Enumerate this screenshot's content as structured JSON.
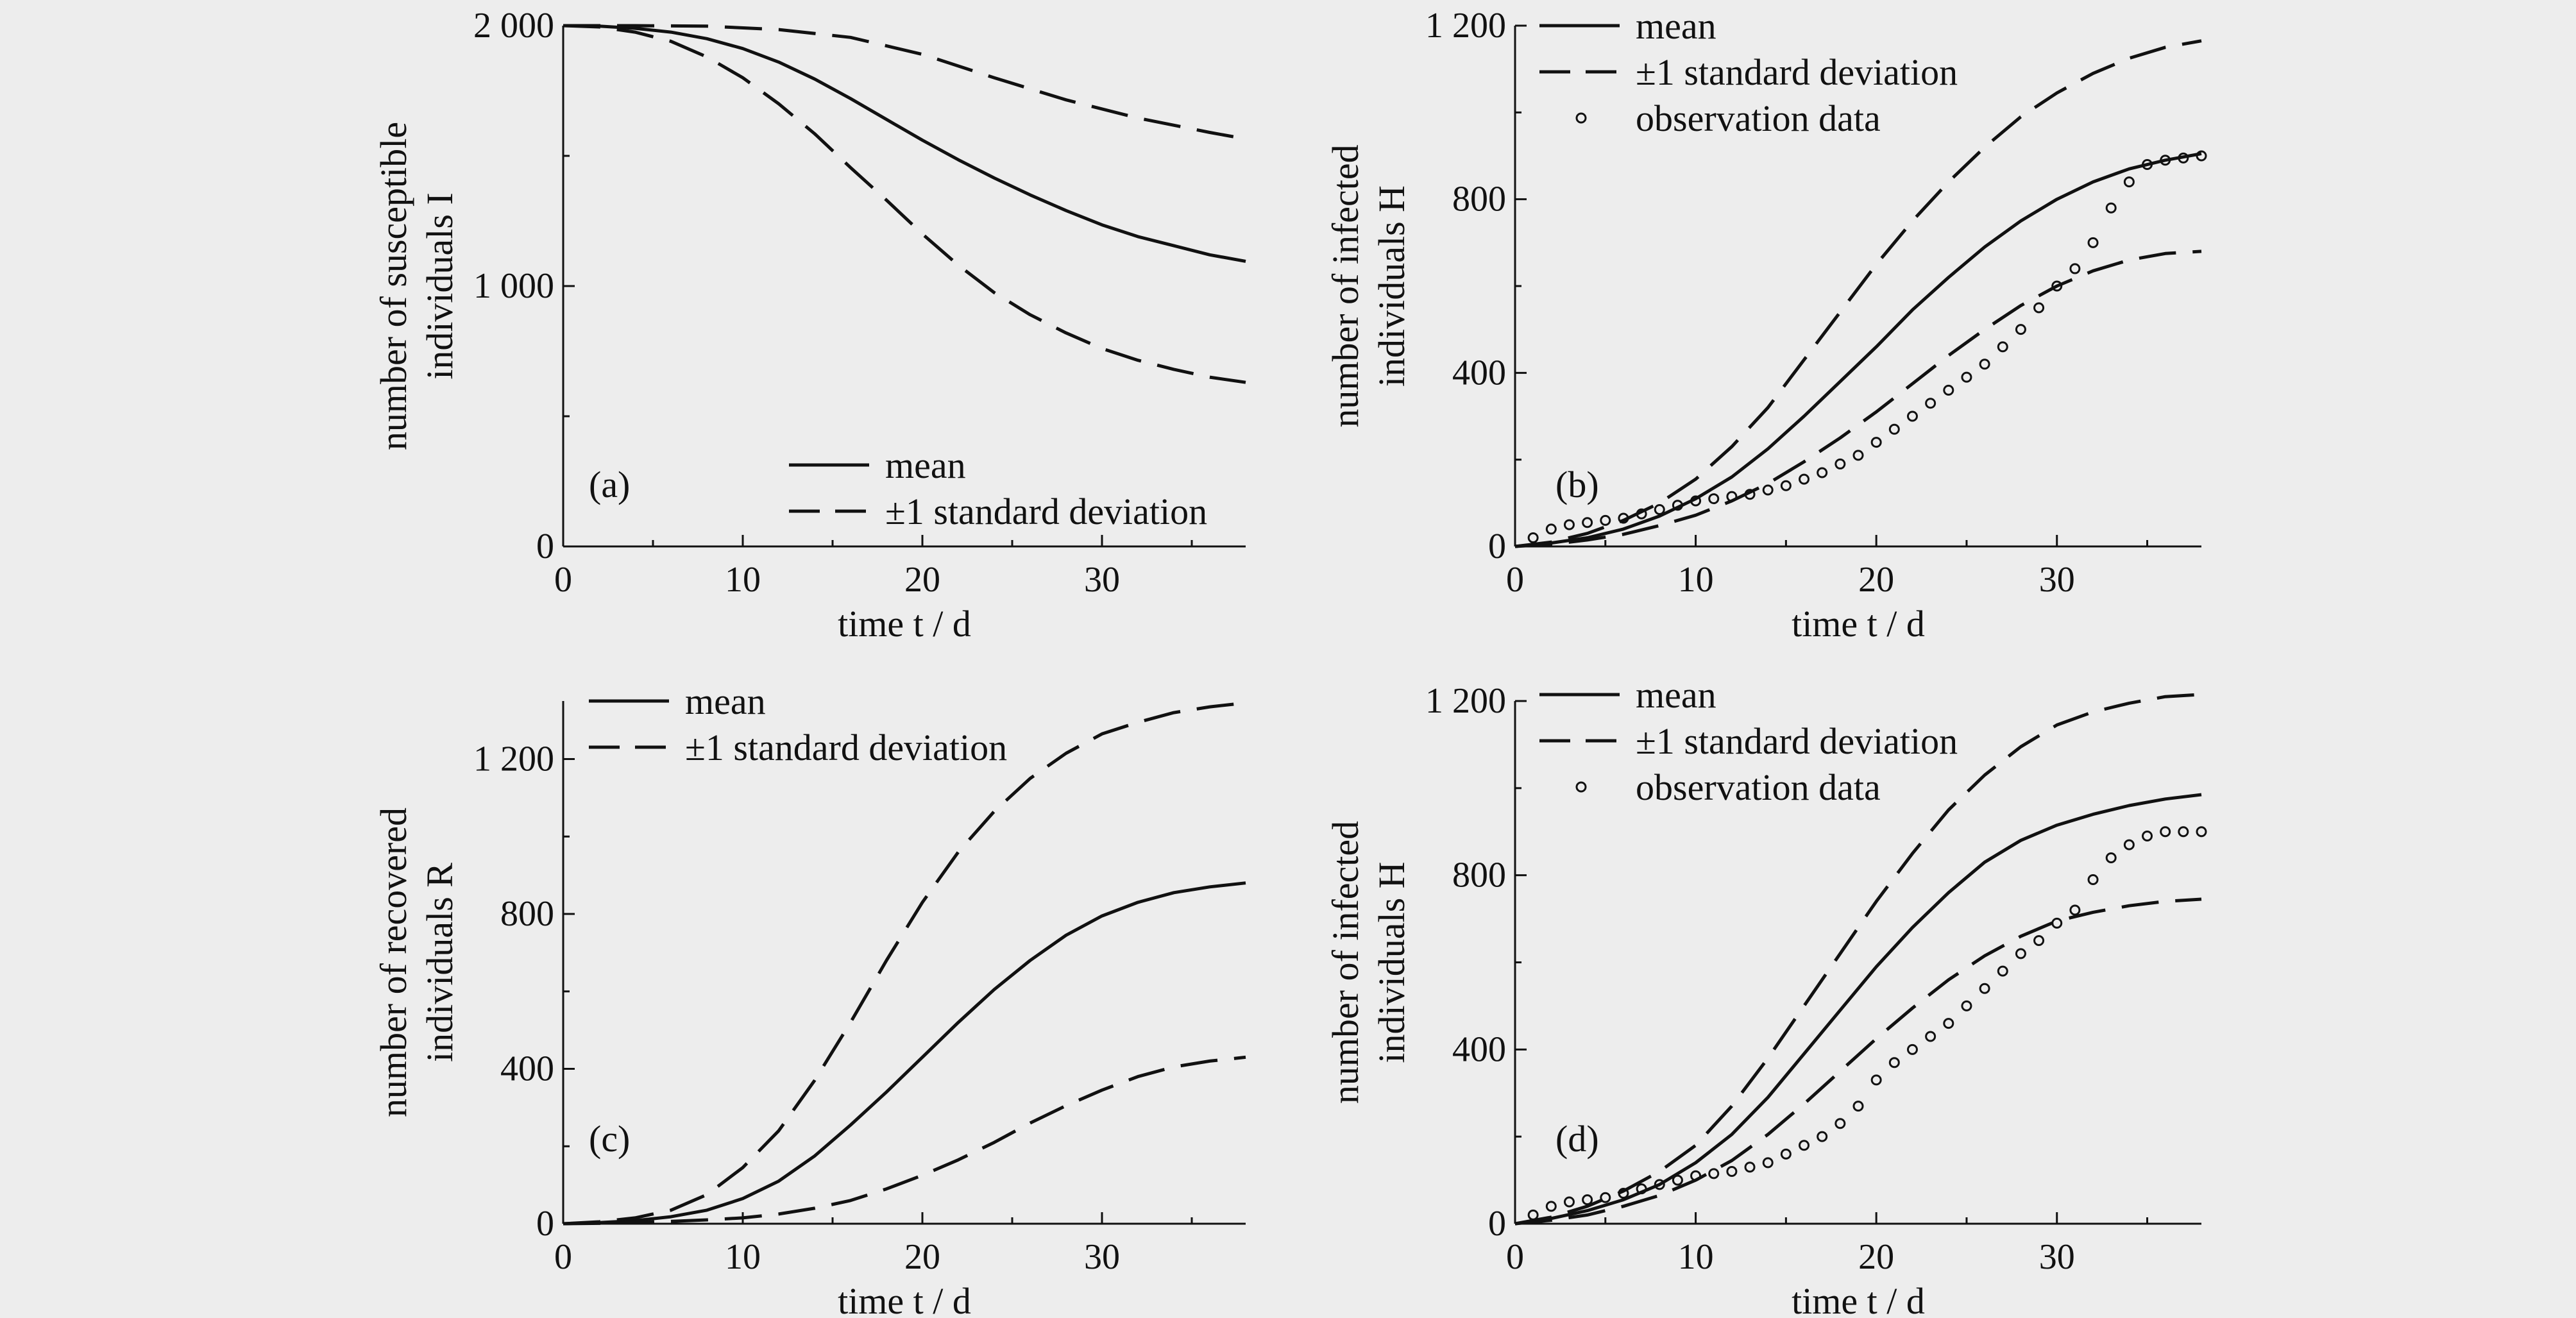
{
  "figure": {
    "background": "#ededed",
    "line_color": "#111111"
  },
  "chart_data": [
    {
      "type": "line",
      "panel_label": "(a)",
      "xlabel": "time t / d",
      "ylabel": [
        "number of susceptible",
        "individuals I"
      ],
      "xlim": [
        0,
        38
      ],
      "ylim": [
        0,
        2000
      ],
      "xticks": [
        0,
        10,
        20,
        30
      ],
      "yticks": [
        0,
        1000,
        2000
      ],
      "ytick_labels": [
        "0",
        "1 000",
        "2 000"
      ],
      "legend": {
        "placement": "bottom-right",
        "items": [
          {
            "label": "mean",
            "style": "solid"
          },
          {
            "label": "±1 standard deviation",
            "style": "dashed"
          }
        ]
      },
      "series": [
        {
          "style": "solid",
          "x": [
            0,
            2,
            4,
            6,
            8,
            10,
            12,
            14,
            16,
            18,
            20,
            22,
            24,
            26,
            28,
            30,
            32,
            34,
            36,
            38
          ],
          "y": [
            2000,
            1998,
            1990,
            1975,
            1950,
            1912,
            1860,
            1795,
            1720,
            1640,
            1560,
            1485,
            1415,
            1350,
            1290,
            1235,
            1190,
            1155,
            1120,
            1095
          ]
        },
        {
          "style": "dashed",
          "x": [
            0,
            4,
            8,
            12,
            16,
            20,
            24,
            28,
            32,
            36,
            38
          ],
          "y": [
            2000,
            2000,
            1998,
            1985,
            1955,
            1890,
            1800,
            1715,
            1645,
            1590,
            1565
          ]
        },
        {
          "style": "dashed",
          "x": [
            0,
            2,
            4,
            6,
            8,
            10,
            12,
            14,
            16,
            18,
            20,
            22,
            24,
            26,
            28,
            30,
            32,
            34,
            36,
            38
          ],
          "y": [
            2000,
            1995,
            1975,
            1940,
            1880,
            1800,
            1700,
            1585,
            1455,
            1330,
            1200,
            1080,
            975,
            890,
            820,
            760,
            715,
            680,
            650,
            630
          ]
        }
      ]
    },
    {
      "type": "line",
      "panel_label": "(b)",
      "xlabel": "time t / d",
      "ylabel": [
        "number of infected",
        "individuals H"
      ],
      "xlim": [
        0,
        38
      ],
      "ylim": [
        0,
        1200
      ],
      "xticks": [
        0,
        10,
        20,
        30
      ],
      "yticks": [
        0,
        400,
        800,
        1200
      ],
      "ytick_labels": [
        "0",
        "400",
        "800",
        "1 200"
      ],
      "legend": {
        "placement": "top-left",
        "items": [
          {
            "label": "mean",
            "style": "solid"
          },
          {
            "label": "±1 standard deviation",
            "style": "dashed"
          },
          {
            "label": "observation data",
            "style": "circle"
          }
        ]
      },
      "series": [
        {
          "style": "solid",
          "x": [
            0,
            2,
            4,
            6,
            8,
            10,
            12,
            14,
            16,
            18,
            20,
            22,
            24,
            26,
            28,
            30,
            32,
            34,
            36,
            38
          ],
          "y": [
            0,
            8,
            20,
            40,
            70,
            110,
            160,
            225,
            300,
            380,
            460,
            545,
            620,
            690,
            750,
            800,
            840,
            870,
            890,
            905
          ]
        },
        {
          "style": "dashed",
          "x": [
            0,
            2,
            4,
            6,
            8,
            10,
            12,
            14,
            16,
            18,
            20,
            22,
            24,
            26,
            28,
            30,
            32,
            34,
            36,
            38
          ],
          "y": [
            0,
            10,
            30,
            60,
            100,
            155,
            230,
            320,
            430,
            540,
            650,
            750,
            840,
            920,
            990,
            1045,
            1090,
            1125,
            1150,
            1165
          ]
        },
        {
          "style": "dashed",
          "x": [
            0,
            2,
            4,
            6,
            8,
            10,
            12,
            14,
            16,
            18,
            20,
            22,
            24,
            26,
            28,
            30,
            32,
            34,
            36,
            38
          ],
          "y": [
            0,
            5,
            15,
            28,
            48,
            72,
            105,
            145,
            195,
            250,
            310,
            375,
            440,
            500,
            555,
            600,
            635,
            660,
            675,
            680
          ]
        },
        {
          "style": "circle",
          "x": [
            1,
            2,
            3,
            4,
            5,
            6,
            7,
            8,
            9,
            10,
            11,
            12,
            13,
            14,
            15,
            16,
            17,
            18,
            19,
            20,
            21,
            22,
            23,
            24,
            25,
            26,
            27,
            28,
            29,
            30,
            31,
            32,
            33,
            34,
            35,
            36,
            37,
            38
          ],
          "y": [
            20,
            40,
            50,
            55,
            60,
            65,
            75,
            85,
            95,
            105,
            110,
            115,
            120,
            130,
            140,
            155,
            170,
            190,
            210,
            240,
            270,
            300,
            330,
            360,
            390,
            420,
            460,
            500,
            550,
            600,
            640,
            700,
            780,
            840,
            880,
            890,
            895,
            900
          ]
        }
      ]
    },
    {
      "type": "line",
      "panel_label": "(c)",
      "xlabel": "time t / d",
      "ylabel": [
        "number of recovered",
        "individuals R"
      ],
      "xlim": [
        0,
        38
      ],
      "ylim": [
        0,
        1350
      ],
      "xticks": [
        0,
        10,
        20,
        30
      ],
      "yticks": [
        0,
        400,
        800,
        1200
      ],
      "ytick_labels": [
        "0",
        "400",
        "800",
        "1 200"
      ],
      "legend": {
        "placement": "top-left",
        "items": [
          {
            "label": "mean",
            "style": "solid"
          },
          {
            "label": "±1 standard deviation",
            "style": "dashed"
          }
        ]
      },
      "series": [
        {
          "style": "solid",
          "x": [
            0,
            2,
            4,
            6,
            8,
            10,
            12,
            14,
            16,
            18,
            20,
            22,
            24,
            26,
            28,
            30,
            32,
            34,
            36,
            38
          ],
          "y": [
            0,
            3,
            8,
            18,
            35,
            65,
            110,
            175,
            255,
            340,
            430,
            520,
            605,
            680,
            745,
            795,
            830,
            855,
            870,
            880
          ]
        },
        {
          "style": "dashed",
          "x": [
            0,
            2,
            4,
            6,
            8,
            10,
            12,
            14,
            16,
            18,
            20,
            22,
            24,
            26,
            28,
            30,
            32,
            34,
            36,
            38
          ],
          "y": [
            0,
            5,
            15,
            35,
            75,
            145,
            240,
            370,
            520,
            680,
            830,
            960,
            1065,
            1150,
            1215,
            1265,
            1295,
            1320,
            1335,
            1345
          ]
        },
        {
          "style": "dashed",
          "x": [
            0,
            2,
            4,
            6,
            8,
            10,
            12,
            14,
            16,
            18,
            20,
            22,
            24,
            26,
            28,
            30,
            32,
            34,
            36,
            38
          ],
          "y": [
            0,
            1,
            3,
            6,
            10,
            15,
            25,
            40,
            60,
            90,
            125,
            165,
            210,
            260,
            305,
            345,
            380,
            405,
            420,
            430
          ]
        }
      ]
    },
    {
      "type": "line",
      "panel_label": "(d)",
      "xlabel": "time t / d",
      "ylabel": [
        "number of infected",
        "individuals H"
      ],
      "xlim": [
        0,
        38
      ],
      "ylim": [
        0,
        1200
      ],
      "xticks": [
        0,
        10,
        20,
        30
      ],
      "yticks": [
        0,
        400,
        800,
        1200
      ],
      "ytick_labels": [
        "0",
        "400",
        "800",
        "1 200"
      ],
      "legend": {
        "placement": "top-left",
        "items": [
          {
            "label": "mean",
            "style": "solid"
          },
          {
            "label": "±1 standard deviation",
            "style": "dashed"
          },
          {
            "label": "observation data",
            "style": "circle"
          }
        ]
      },
      "series": [
        {
          "style": "solid",
          "x": [
            0,
            2,
            4,
            6,
            8,
            10,
            12,
            14,
            16,
            18,
            20,
            22,
            24,
            26,
            28,
            30,
            32,
            34,
            36,
            38
          ],
          "y": [
            0,
            12,
            30,
            55,
            90,
            140,
            205,
            290,
            390,
            490,
            590,
            680,
            760,
            830,
            880,
            915,
            940,
            960,
            975,
            985
          ]
        },
        {
          "style": "dashed",
          "x": [
            0,
            2,
            4,
            6,
            8,
            10,
            12,
            14,
            16,
            18,
            20,
            22,
            24,
            26,
            28,
            30,
            32,
            34,
            36,
            38
          ],
          "y": [
            0,
            15,
            40,
            75,
            120,
            180,
            270,
            380,
            500,
            620,
            740,
            850,
            950,
            1030,
            1095,
            1145,
            1175,
            1195,
            1210,
            1215
          ]
        },
        {
          "style": "dashed",
          "x": [
            0,
            2,
            4,
            6,
            8,
            10,
            12,
            14,
            16,
            18,
            20,
            22,
            24,
            26,
            28,
            30,
            32,
            34,
            36,
            38
          ],
          "y": [
            0,
            8,
            20,
            40,
            65,
            100,
            145,
            205,
            275,
            350,
            425,
            495,
            560,
            615,
            660,
            695,
            715,
            730,
            740,
            745
          ]
        },
        {
          "style": "circle",
          "x": [
            1,
            2,
            3,
            4,
            5,
            6,
            7,
            8,
            9,
            10,
            11,
            12,
            13,
            14,
            15,
            16,
            17,
            18,
            19,
            20,
            21,
            22,
            23,
            24,
            25,
            26,
            27,
            28,
            29,
            30,
            31,
            32,
            33,
            34,
            35,
            36,
            37,
            38
          ],
          "y": [
            20,
            40,
            50,
            55,
            60,
            70,
            80,
            90,
            100,
            110,
            115,
            120,
            130,
            140,
            160,
            180,
            200,
            230,
            270,
            330,
            370,
            400,
            430,
            460,
            500,
            540,
            580,
            620,
            650,
            690,
            720,
            790,
            840,
            870,
            890,
            900,
            900,
            900
          ]
        }
      ]
    }
  ]
}
